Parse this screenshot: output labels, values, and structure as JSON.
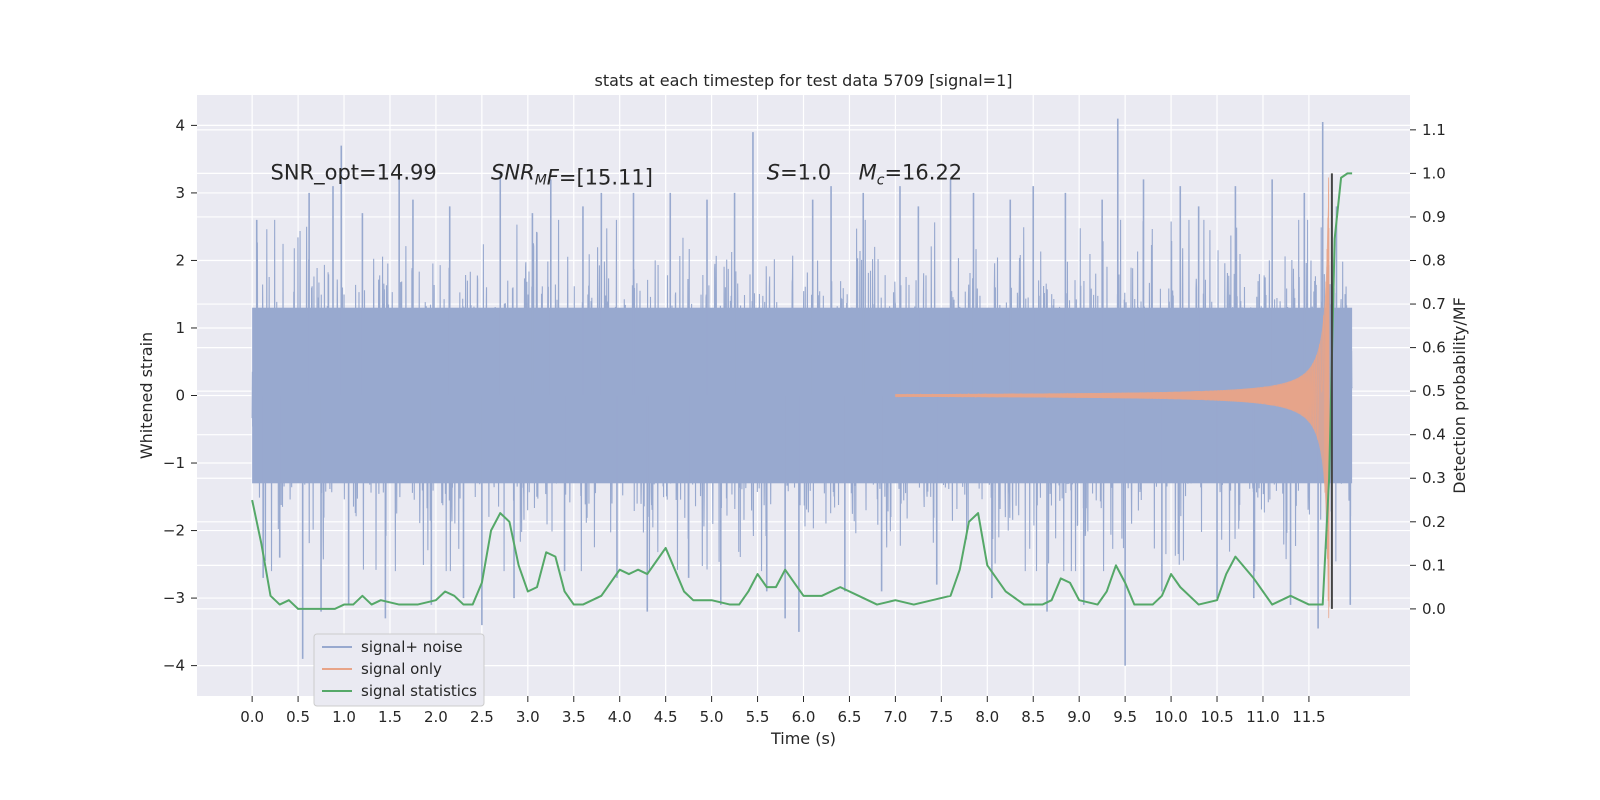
{
  "chart_data": {
    "type": "line",
    "title": "stats at each timestep for test data 5709 [signal=1]",
    "xlabel": "Time (s)",
    "ylabel": "Whitened strain",
    "y2label": "Detection probability/MF",
    "xlim": [
      -0.6,
      12.6
    ],
    "ylim": [
      -4.45,
      4.45
    ],
    "y2lim": [
      -0.2,
      1.18
    ],
    "xticks": [
      0.0,
      0.5,
      1.0,
      1.5,
      2.0,
      2.5,
      3.0,
      3.5,
      4.0,
      4.5,
      5.0,
      5.5,
      6.0,
      6.5,
      7.0,
      7.5,
      8.0,
      8.5,
      9.0,
      9.5,
      10.0,
      10.5,
      11.0,
      11.5
    ],
    "xtick_labels": [
      "0.0",
      "0.5",
      "1.0",
      "1.5",
      "2.0",
      "2.5",
      "3.0",
      "3.5",
      "4.0",
      "4.5",
      "5.0",
      "5.5",
      "6.0",
      "6.5",
      "7.0",
      "7.5",
      "8.0",
      "8.5",
      "9.0",
      "9.5",
      "10.0",
      "10.5",
      "11.0",
      "11.5"
    ],
    "yticks": [
      -4,
      -3,
      -2,
      -1,
      0,
      1,
      2,
      3,
      4
    ],
    "ytick_labels": [
      "−4",
      "−3",
      "−2",
      "−1",
      "0",
      "1",
      "2",
      "3",
      "4"
    ],
    "y2ticks": [
      0.0,
      0.1,
      0.2,
      0.3,
      0.4,
      0.5,
      0.6,
      0.7,
      0.8,
      0.9,
      1.0,
      1.1
    ],
    "y2tick_labels": [
      "0.0",
      "0.1",
      "0.2",
      "0.3",
      "0.4",
      "0.5",
      "0.6",
      "0.7",
      "0.8",
      "0.9",
      "1.0",
      "1.1"
    ],
    "grid": true,
    "legend_position": "lower-left",
    "annotations": [
      {
        "text": "SNR_opt=14.99",
        "x": 0.2,
        "y": 3.3,
        "math": false
      },
      {
        "text": "SNR",
        "sub": "M",
        "suffix": "F=[15.11]",
        "x": 2.6,
        "y": 3.3,
        "math": true
      },
      {
        "text": "S",
        "sub": "",
        "suffix": "=1.0",
        "x": 5.6,
        "y": 3.3,
        "math": true
      },
      {
        "text": "M",
        "sub": "c",
        "suffix": "=16.22",
        "x": 6.6,
        "y": 3.3,
        "math": true
      }
    ],
    "series": [
      {
        "name": "signal+ noise",
        "color": "#98a9cf",
        "axis": "left",
        "t_start": 0.0,
        "t_end": 11.97,
        "envelope_typical": 1.3,
        "peaks": [
          [
            0.05,
            2.6
          ],
          [
            0.12,
            -2.7
          ],
          [
            0.3,
            -2.4
          ],
          [
            0.55,
            -3.9
          ],
          [
            0.62,
            3.0
          ],
          [
            0.75,
            -3.2
          ],
          [
            0.88,
            3.1
          ],
          [
            0.97,
            3.7
          ],
          [
            1.05,
            -3.1
          ],
          [
            1.2,
            2.7
          ],
          [
            1.45,
            -3.3
          ],
          [
            1.6,
            3.4
          ],
          [
            1.75,
            2.9
          ],
          [
            1.95,
            -3.1
          ],
          [
            2.15,
            2.8
          ],
          [
            2.3,
            -3.0
          ],
          [
            2.5,
            -3.4
          ],
          [
            2.7,
            3.3
          ],
          [
            2.85,
            -3.0
          ],
          [
            3.05,
            2.7
          ],
          [
            3.25,
            3.2
          ],
          [
            3.4,
            -2.6
          ],
          [
            3.6,
            2.8
          ],
          [
            3.8,
            3.0
          ],
          [
            3.97,
            -2.7
          ],
          [
            4.15,
            3.0
          ],
          [
            4.3,
            -3.2
          ],
          [
            4.55,
            3.0
          ],
          [
            4.75,
            -2.7
          ],
          [
            4.95,
            2.9
          ],
          [
            5.1,
            -3.1
          ],
          [
            5.25,
            3.0
          ],
          [
            5.45,
            3.9
          ],
          [
            5.6,
            -2.9
          ],
          [
            5.8,
            -3.3
          ],
          [
            5.95,
            -3.5
          ],
          [
            6.1,
            2.9
          ],
          [
            6.3,
            3.1
          ],
          [
            6.45,
            -2.9
          ],
          [
            6.65,
            3.0
          ],
          [
            6.85,
            -2.9
          ],
          [
            7.05,
            3.1
          ],
          [
            7.25,
            2.8
          ],
          [
            7.45,
            -2.8
          ],
          [
            7.6,
            3.2
          ],
          [
            7.85,
            3.0
          ],
          [
            8.05,
            -3.0
          ],
          [
            8.25,
            2.9
          ],
          [
            8.5,
            3.1
          ],
          [
            8.65,
            -3.2
          ],
          [
            8.85,
            3.0
          ],
          [
            9.05,
            -3.1
          ],
          [
            9.25,
            2.9
          ],
          [
            9.42,
            4.1
          ],
          [
            9.5,
            -4.0
          ],
          [
            9.7,
            3.2
          ],
          [
            9.9,
            -2.9
          ],
          [
            10.1,
            3.1
          ],
          [
            10.3,
            2.8
          ],
          [
            10.5,
            -3.0
          ],
          [
            10.7,
            3.1
          ],
          [
            10.9,
            -3.0
          ],
          [
            11.1,
            3.2
          ],
          [
            11.3,
            -3.1
          ],
          [
            11.45,
            3.0
          ],
          [
            11.6,
            -3.45
          ],
          [
            11.65,
            4.05
          ],
          [
            11.8,
            2.8
          ],
          [
            11.95,
            -3.1
          ]
        ]
      },
      {
        "name": "signal only",
        "color": "#e8a488",
        "axis": "left",
        "chirp_start": 7.0,
        "chirp_end": 11.72,
        "amplitude_start": 0.02,
        "amplitude_peak": 3.3
      },
      {
        "name": "signal statistics",
        "color": "#55a868",
        "axis": "right",
        "x": [
          0.0,
          0.1,
          0.2,
          0.3,
          0.4,
          0.5,
          0.7,
          0.9,
          1.0,
          1.1,
          1.2,
          1.3,
          1.4,
          1.6,
          1.8,
          2.0,
          2.1,
          2.2,
          2.3,
          2.4,
          2.5,
          2.6,
          2.7,
          2.8,
          2.9,
          3.0,
          3.1,
          3.2,
          3.3,
          3.4,
          3.5,
          3.6,
          3.8,
          4.0,
          4.1,
          4.2,
          4.3,
          4.4,
          4.5,
          4.6,
          4.7,
          4.8,
          5.0,
          5.2,
          5.3,
          5.4,
          5.5,
          5.6,
          5.7,
          5.8,
          5.9,
          6.0,
          6.2,
          6.4,
          6.6,
          6.8,
          7.0,
          7.2,
          7.4,
          7.6,
          7.7,
          7.8,
          7.9,
          8.0,
          8.2,
          8.4,
          8.6,
          8.7,
          8.8,
          8.9,
          9.0,
          9.2,
          9.3,
          9.4,
          9.5,
          9.6,
          9.8,
          9.9,
          10.0,
          10.1,
          10.3,
          10.5,
          10.6,
          10.7,
          10.9,
          11.1,
          11.3,
          11.5,
          11.65,
          11.72,
          11.78,
          11.85,
          11.92,
          11.97
        ],
        "y": [
          0.25,
          0.15,
          0.03,
          0.01,
          0.02,
          0.0,
          0.0,
          0.0,
          0.01,
          0.01,
          0.03,
          0.01,
          0.02,
          0.01,
          0.01,
          0.02,
          0.04,
          0.03,
          0.01,
          0.01,
          0.06,
          0.18,
          0.22,
          0.2,
          0.1,
          0.04,
          0.05,
          0.13,
          0.12,
          0.04,
          0.01,
          0.01,
          0.03,
          0.09,
          0.08,
          0.09,
          0.08,
          0.11,
          0.14,
          0.09,
          0.04,
          0.02,
          0.02,
          0.01,
          0.01,
          0.04,
          0.08,
          0.05,
          0.05,
          0.09,
          0.06,
          0.03,
          0.03,
          0.05,
          0.03,
          0.01,
          0.02,
          0.01,
          0.02,
          0.03,
          0.09,
          0.2,
          0.22,
          0.1,
          0.04,
          0.01,
          0.01,
          0.02,
          0.07,
          0.06,
          0.02,
          0.01,
          0.04,
          0.1,
          0.06,
          0.01,
          0.01,
          0.03,
          0.08,
          0.05,
          0.01,
          0.02,
          0.08,
          0.12,
          0.07,
          0.01,
          0.03,
          0.01,
          0.01,
          0.3,
          0.85,
          0.99,
          1.0,
          1.0
        ]
      }
    ],
    "vline": {
      "x": 11.75,
      "color": "#444444",
      "axis": "right",
      "y_range": [
        0.0,
        1.0
      ]
    }
  },
  "legend": {
    "items": [
      {
        "label": "signal+ noise",
        "color": "#98a9cf"
      },
      {
        "label": "signal only",
        "color": "#e8a488"
      },
      {
        "label": "signal statistics",
        "color": "#55a868"
      }
    ]
  }
}
